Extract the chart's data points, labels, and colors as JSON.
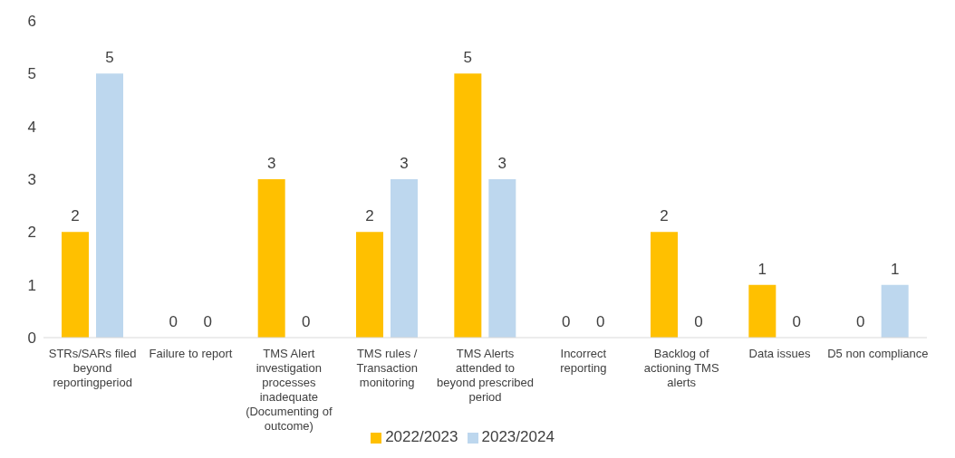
{
  "chart_data": {
    "type": "bar",
    "categories": [
      "STRs/SARs filed beyond reportingperiod",
      "Failure to report",
      "TMS Alert investigation processes inadequate (Documenting of outcome)",
      "TMS rules / Transaction monitoring",
      "TMS Alerts attended to beyond prescribed period",
      "Incorrect reporting",
      "Backlog of actioning TMS alerts",
      "Data issues",
      "D5 non compliance"
    ],
    "series": [
      {
        "name": "2022/2023",
        "color": "#ffc000",
        "values": [
          2,
          0,
          3,
          2,
          5,
          0,
          2,
          1,
          0
        ]
      },
      {
        "name": "2023/2024",
        "color": "#bdd7ee",
        "values": [
          5,
          0,
          0,
          3,
          3,
          0,
          0,
          0,
          1
        ]
      }
    ],
    "ylim": [
      0,
      6
    ],
    "yticks": [
      0,
      1,
      2,
      3,
      4,
      5,
      6
    ],
    "grid": false,
    "legend": "bottom",
    "data_labels": true
  }
}
